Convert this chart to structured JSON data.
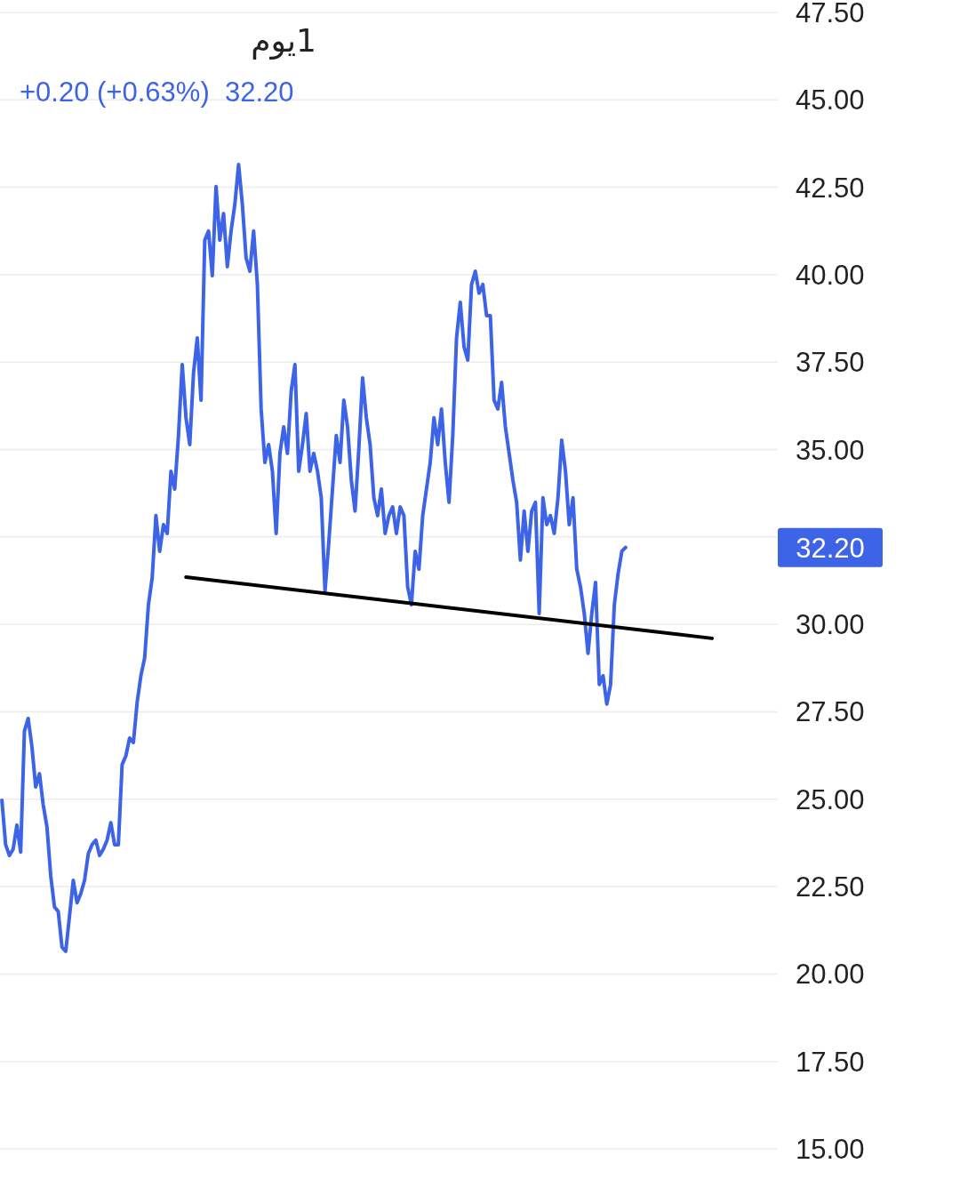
{
  "chart_data": {
    "type": "line",
    "title": "1يوم",
    "subtitle": "+0.20 (+0.63%)  32.20",
    "categories": [
      null,
      null,
      null,
      null,
      null,
      null,
      null,
      null,
      null,
      null,
      null,
      null,
      null,
      null,
      null,
      null,
      null,
      null,
      null,
      null,
      null,
      null,
      null,
      null,
      null,
      null,
      null,
      null,
      null,
      null,
      null,
      null,
      null,
      null,
      null,
      null,
      null,
      null,
      null,
      null,
      null,
      null,
      null,
      null,
      null,
      null,
      null,
      null,
      null,
      null,
      null,
      null,
      null,
      null,
      null,
      null,
      null,
      null,
      null,
      null,
      null,
      null,
      null,
      null,
      null,
      null,
      null,
      null,
      null,
      null,
      null,
      null,
      null,
      null,
      null,
      null,
      null,
      null,
      null,
      null,
      null,
      null,
      null,
      null,
      null,
      null,
      null,
      null,
      null,
      null,
      null,
      null,
      null,
      null,
      null,
      null,
      null,
      null,
      null,
      null,
      null,
      null,
      null,
      null,
      null,
      null,
      null,
      null,
      null,
      null,
      null,
      null,
      null,
      null,
      null,
      null,
      null,
      null,
      null,
      null,
      null,
      null,
      null,
      null,
      null,
      null,
      null,
      null,
      null,
      null,
      null,
      null,
      null,
      null,
      null,
      null,
      null,
      null,
      null,
      null,
      null,
      null,
      null,
      null,
      null,
      null,
      null,
      null,
      null,
      null,
      null,
      null,
      null,
      null,
      null,
      null,
      null,
      null,
      null,
      null,
      null,
      null,
      null,
      null,
      null,
      null,
      null,
      null,
      null,
      null,
      null,
      null,
      null,
      null,
      null,
      null,
      null,
      null,
      null,
      null,
      null,
      null,
      null,
      null,
      null,
      null,
      null,
      null,
      null,
      null,
      null,
      null,
      null,
      null,
      null,
      null,
      null,
      null,
      null,
      null,
      null,
      null,
      null,
      null,
      null,
      null,
      null
    ],
    "series": [
      {
        "color": "#3d63e6",
        "values": [
          24.97,
          23.7,
          23.39,
          23.57,
          24.26,
          23.49,
          26.95,
          27.31,
          26.5,
          25.35,
          25.73,
          24.84,
          24.21,
          22.81,
          21.92,
          21.79,
          20.77,
          20.65,
          21.66,
          22.68,
          22.04,
          22.3,
          22.68,
          23.44,
          23.7,
          23.83,
          23.39,
          23.57,
          23.83,
          24.33,
          23.7,
          23.7,
          25.99,
          26.24,
          26.75,
          26.62,
          27.77,
          28.53,
          29.04,
          30.56,
          31.33,
          33.11,
          32.09,
          32.85,
          32.6,
          34.38,
          33.87,
          35.4,
          37.43,
          35.91,
          35.14,
          37.18,
          38.19,
          36.41,
          40.99,
          41.25,
          39.97,
          42.52,
          40.99,
          41.75,
          40.23,
          41.25,
          42.01,
          43.15,
          42.01,
          40.48,
          40.1,
          41.25,
          39.72,
          36.16,
          34.63,
          35.14,
          34.38,
          32.6,
          34.89,
          35.65,
          34.89,
          36.67,
          37.43,
          34.38,
          35.14,
          36.03,
          34.38,
          34.89,
          34.38,
          33.62,
          30.95,
          32.34,
          33.87,
          35.4,
          34.63,
          36.41,
          35.65,
          34.13,
          33.24,
          35.02,
          37.05,
          35.91,
          35.14,
          33.62,
          33.11,
          33.87,
          32.6,
          33.11,
          33.36,
          32.6,
          33.36,
          33.11,
          31.07,
          30.56,
          32.09,
          31.58,
          33.11,
          33.87,
          34.63,
          35.91,
          35.14,
          36.16,
          34.63,
          33.49,
          35.4,
          38.19,
          39.21,
          37.94,
          37.56,
          39.72,
          40.1,
          39.47,
          39.72,
          38.83,
          38.83,
          36.41,
          36.16,
          36.92,
          35.65,
          34.89,
          34.13,
          33.49,
          31.84,
          33.24,
          32.09,
          33.24,
          33.49,
          30.31,
          33.62,
          32.85,
          33.11,
          32.6,
          33.62,
          35.27,
          34.38,
          32.85,
          33.62,
          31.58,
          31.07,
          30.31,
          29.17,
          30.31,
          31.2,
          28.28,
          28.53,
          27.72,
          28.28,
          30.56,
          31.45,
          32.09,
          32.2,
          null,
          null,
          null,
          null,
          null,
          null,
          null,
          null,
          null,
          null,
          null,
          null,
          null,
          null,
          null,
          null,
          null,
          null,
          null,
          null,
          null,
          null,
          null,
          null,
          null,
          null,
          null,
          null,
          null,
          null,
          null,
          null,
          null,
          null,
          null,
          null,
          null,
          null,
          null,
          null
        ]
      },
      {
        "color": "#000000",
        "values": [
          null,
          null,
          null,
          null,
          null,
          null,
          null,
          null,
          null,
          null,
          null,
          null,
          null,
          null,
          null,
          null,
          null,
          null,
          null,
          null,
          null,
          null,
          null,
          null,
          null,
          null,
          null,
          null,
          null,
          null,
          null,
          null,
          null,
          null,
          null,
          null,
          null,
          null,
          null,
          null,
          null,
          null,
          null,
          null,
          null,
          null,
          null,
          null,
          null,
          31.35,
          null,
          null,
          null,
          null,
          null,
          null,
          null,
          null,
          null,
          null,
          null,
          null,
          null,
          null,
          null,
          null,
          null,
          null,
          null,
          null,
          null,
          null,
          null,
          null,
          null,
          null,
          null,
          null,
          null,
          null,
          null,
          null,
          null,
          null,
          null,
          null,
          null,
          null,
          null,
          null,
          null,
          null,
          null,
          null,
          null,
          null,
          null,
          null,
          null,
          null,
          null,
          null,
          null,
          null,
          null,
          null,
          null,
          null,
          null,
          null,
          null,
          null,
          null,
          null,
          null,
          null,
          null,
          null,
          null,
          null,
          null,
          null,
          null,
          null,
          null,
          null,
          null,
          null,
          null,
          null,
          null,
          null,
          null,
          null,
          null,
          null,
          null,
          null,
          null,
          null,
          null,
          null,
          null,
          null,
          null,
          null,
          null,
          null,
          null,
          null,
          null,
          null,
          null,
          null,
          null,
          null,
          null,
          null,
          null,
          null,
          null,
          null,
          null,
          null,
          null,
          null,
          null,
          null,
          null,
          null,
          null,
          null,
          null,
          null,
          null,
          null,
          null,
          null,
          null,
          null,
          null,
          null,
          null,
          null,
          null,
          null,
          null,
          null,
          null,
          29.6,
          null,
          null,
          null,
          null,
          null,
          null,
          null,
          null,
          null,
          null,
          null,
          null,
          null,
          null,
          null,
          null,
          null
        ]
      }
    ],
    "ylim": [
      15,
      47.5
    ],
    "yticks": [
      {
        "value": 15,
        "label": "15.00"
      },
      {
        "value": 17.5,
        "label": "17.50"
      },
      {
        "value": 20,
        "label": "20.00"
      },
      {
        "value": 22.5,
        "label": "22.50"
      },
      {
        "value": 25,
        "label": "25.00"
      },
      {
        "value": 27.5,
        "label": "27.50"
      },
      {
        "value": 30,
        "label": "30.00"
      },
      {
        "value": 32.5,
        "label": null
      },
      {
        "value": 35,
        "label": "35.00"
      },
      {
        "value": 37.5,
        "label": "37.50"
      },
      {
        "value": 40,
        "label": "40.00"
      },
      {
        "value": 42.5,
        "label": "42.50"
      },
      {
        "value": 45,
        "label": "45.00"
      },
      {
        "value": 47.5,
        "label": "47.50"
      }
    ],
    "grid": "y",
    "tick_labels": "y",
    "annotations": [
      "32.20"
    ]
  }
}
